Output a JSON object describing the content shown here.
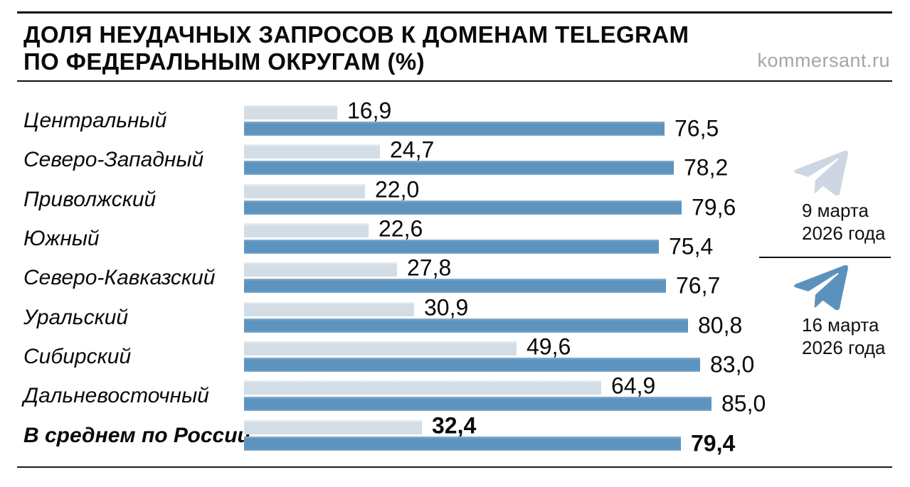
{
  "header": {
    "title_line1": "ДОЛЯ НЕУДАЧНЫХ ЗАПРОСОВ К ДОМЕНАМ TELEGRAM",
    "title_line2": "ПО ФЕДЕРАЛЬНЫМ ОКРУГАМ (%)",
    "source": "kommersant.ru"
  },
  "legend": [
    {
      "icon": "telegram-plane-icon",
      "color": "#ccd7e3",
      "line1": "9 марта",
      "line2": "2026 года"
    },
    {
      "icon": "telegram-plane-icon",
      "color": "#5b92bd",
      "line1": "16 марта",
      "line2": "2026 года"
    }
  ],
  "colors": {
    "bar_light": "#d3dde5",
    "bar_dark": "#5d93bf",
    "rule": "#111111",
    "source_text": "#a6a6a6",
    "background": "#ffffff"
  },
  "chart_data": {
    "type": "bar",
    "orientation": "horizontal",
    "title": "Доля неудачных запросов к доменам Telegram по федеральным округам (%)",
    "categories": [
      "Центральный",
      "Северо-Западный",
      "Приволжский",
      "Южный",
      "Северо-Кавказский",
      "Уральский",
      "Сибирский",
      "Дальневосточный",
      "В среднем по России"
    ],
    "series": [
      {
        "name": "9 марта 2026 года",
        "color": "#d3dde5",
        "values": [
          16.9,
          24.7,
          22.0,
          22.6,
          27.8,
          30.9,
          49.6,
          64.9,
          32.4
        ]
      },
      {
        "name": "16 марта 2026 года",
        "color": "#5d93bf",
        "values": [
          76.5,
          78.2,
          79.6,
          75.4,
          76.7,
          80.8,
          83.0,
          85.0,
          79.4
        ]
      }
    ],
    "xlim": [
      0,
      88
    ],
    "grid": false,
    "value_labels": true,
    "decimal_separator": ",",
    "legend_position": "right",
    "bold_category": "В среднем по России",
    "source": "kommersant.ru"
  }
}
